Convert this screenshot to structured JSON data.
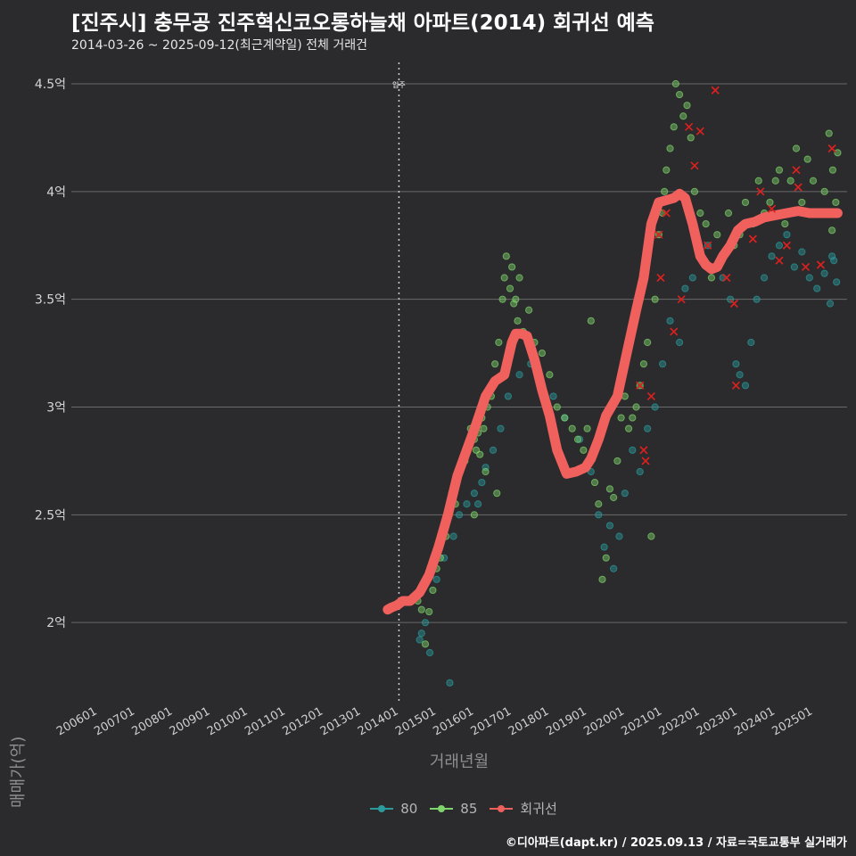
{
  "chart_data": {
    "type": "scatter",
    "title": "[진주시] 충무공 진주혁신코오롱하늘채 아파트(2014) 회귀선 예측",
    "subtitle": "2014-03-26 ~ 2025-09-12(최근계약일) 전체 거래건",
    "xlabel": "거래년월",
    "ylabel": "매매가(억)",
    "x_ticks": [
      "200601",
      "200701",
      "200801",
      "200901",
      "201001",
      "201101",
      "201201",
      "201301",
      "201401",
      "201501",
      "201601",
      "201701",
      "201801",
      "201901",
      "202001",
      "202101",
      "202201",
      "202301",
      "202401",
      "202501"
    ],
    "y_ticks": [
      "2억",
      "2.5억",
      "3억",
      "3.5억",
      "4억",
      "4.5억"
    ],
    "y_tick_values": [
      2.0,
      2.5,
      3.0,
      3.5,
      4.0,
      4.5
    ],
    "ylim": [
      1.62,
      4.62
    ],
    "xlim": [
      2005.3,
      2025.9
    ],
    "vline": {
      "x": 2014.0,
      "label": "입주"
    },
    "grid": "horizontal",
    "legend_position": "bottom",
    "series": [
      {
        "name": "80",
        "color": "#2a9a9c",
        "points": [
          [
            2014.55,
            1.92
          ],
          [
            2014.6,
            1.95
          ],
          [
            2014.7,
            2.0
          ],
          [
            2014.82,
            1.86
          ],
          [
            2015.0,
            2.2
          ],
          [
            2015.2,
            2.3
          ],
          [
            2015.35,
            1.72
          ],
          [
            2015.45,
            2.4
          ],
          [
            2015.6,
            2.5
          ],
          [
            2015.8,
            2.55
          ],
          [
            2016.0,
            2.6
          ],
          [
            2016.1,
            2.55
          ],
          [
            2016.2,
            2.65
          ],
          [
            2016.3,
            2.72
          ],
          [
            2016.5,
            2.8
          ],
          [
            2016.7,
            2.9
          ],
          [
            2016.9,
            3.05
          ],
          [
            2017.2,
            3.15
          ],
          [
            2017.5,
            3.2
          ],
          [
            2017.8,
            3.1
          ],
          [
            2018.1,
            3.05
          ],
          [
            2018.4,
            2.95
          ],
          [
            2018.8,
            2.85
          ],
          [
            2019.1,
            2.7
          ],
          [
            2019.3,
            2.5
          ],
          [
            2019.45,
            2.35
          ],
          [
            2019.6,
            2.45
          ],
          [
            2019.7,
            2.25
          ],
          [
            2019.85,
            2.4
          ],
          [
            2020.0,
            2.6
          ],
          [
            2020.2,
            2.8
          ],
          [
            2020.4,
            2.7
          ],
          [
            2020.6,
            2.9
          ],
          [
            2020.8,
            3.0
          ],
          [
            2021.0,
            3.2
          ],
          [
            2021.2,
            3.4
          ],
          [
            2021.45,
            3.3
          ],
          [
            2021.6,
            3.55
          ],
          [
            2021.8,
            3.6
          ],
          [
            2022.0,
            3.7
          ],
          [
            2022.2,
            3.75
          ],
          [
            2022.4,
            3.65
          ],
          [
            2022.6,
            3.6
          ],
          [
            2022.8,
            3.5
          ],
          [
            2022.95,
            3.2
          ],
          [
            2023.05,
            3.15
          ],
          [
            2023.2,
            3.1
          ],
          [
            2023.35,
            3.3
          ],
          [
            2023.5,
            3.5
          ],
          [
            2023.7,
            3.6
          ],
          [
            2023.9,
            3.7
          ],
          [
            2024.1,
            3.75
          ],
          [
            2024.3,
            3.8
          ],
          [
            2024.5,
            3.65
          ],
          [
            2024.7,
            3.72
          ],
          [
            2024.9,
            3.6
          ],
          [
            2025.1,
            3.55
          ],
          [
            2025.3,
            3.62
          ],
          [
            2025.5,
            3.7
          ],
          [
            2025.62,
            3.58
          ],
          [
            2025.55,
            3.68
          ],
          [
            2025.45,
            3.48
          ]
        ]
      },
      {
        "name": "85",
        "color": "#7fd46b",
        "points": [
          [
            2014.5,
            2.1
          ],
          [
            2014.6,
            2.06
          ],
          [
            2014.7,
            1.9
          ],
          [
            2014.8,
            2.05
          ],
          [
            2014.9,
            2.15
          ],
          [
            2015.0,
            2.25
          ],
          [
            2015.1,
            2.3
          ],
          [
            2015.25,
            2.4
          ],
          [
            2015.4,
            2.6
          ],
          [
            2015.5,
            2.55
          ],
          [
            2015.6,
            2.7
          ],
          [
            2015.75,
            2.75
          ],
          [
            2015.9,
            2.9
          ],
          [
            2016.0,
            2.85
          ],
          [
            2016.05,
            2.8
          ],
          [
            2016.1,
            2.88
          ],
          [
            2016.15,
            2.78
          ],
          [
            2016.2,
            2.95
          ],
          [
            2016.25,
            2.9
          ],
          [
            2016.3,
            2.7
          ],
          [
            2016.35,
            3.0
          ],
          [
            2016.45,
            3.05
          ],
          [
            2016.55,
            3.2
          ],
          [
            2016.65,
            3.3
          ],
          [
            2016.75,
            3.5
          ],
          [
            2016.8,
            3.6
          ],
          [
            2016.85,
            3.7
          ],
          [
            2016.95,
            3.55
          ],
          [
            2017.0,
            3.65
          ],
          [
            2017.05,
            3.48
          ],
          [
            2017.1,
            3.5
          ],
          [
            2017.15,
            3.4
          ],
          [
            2017.2,
            3.6
          ],
          [
            2017.3,
            3.35
          ],
          [
            2017.45,
            3.45
          ],
          [
            2017.6,
            3.3
          ],
          [
            2017.8,
            3.25
          ],
          [
            2018.0,
            3.15
          ],
          [
            2018.2,
            3.0
          ],
          [
            2018.4,
            2.95
          ],
          [
            2018.6,
            2.9
          ],
          [
            2018.75,
            2.85
          ],
          [
            2018.9,
            2.8
          ],
          [
            2019.0,
            2.9
          ],
          [
            2019.1,
            3.4
          ],
          [
            2019.2,
            2.65
          ],
          [
            2019.3,
            2.55
          ],
          [
            2019.4,
            2.2
          ],
          [
            2019.5,
            2.3
          ],
          [
            2019.6,
            2.62
          ],
          [
            2019.7,
            2.58
          ],
          [
            2019.8,
            2.75
          ],
          [
            2019.9,
            2.95
          ],
          [
            2020.0,
            3.05
          ],
          [
            2020.1,
            2.9
          ],
          [
            2020.2,
            2.95
          ],
          [
            2020.3,
            3.0
          ],
          [
            2020.4,
            3.1
          ],
          [
            2020.5,
            3.2
          ],
          [
            2020.6,
            3.3
          ],
          [
            2020.7,
            2.4
          ],
          [
            2020.8,
            3.5
          ],
          [
            2020.9,
            3.8
          ],
          [
            2021.0,
            3.9
          ],
          [
            2021.05,
            4.0
          ],
          [
            2021.1,
            4.1
          ],
          [
            2021.2,
            4.2
          ],
          [
            2021.3,
            4.3
          ],
          [
            2021.35,
            4.5
          ],
          [
            2021.45,
            4.45
          ],
          [
            2021.55,
            4.35
          ],
          [
            2021.65,
            4.4
          ],
          [
            2021.75,
            4.25
          ],
          [
            2021.85,
            4.0
          ],
          [
            2022.0,
            3.9
          ],
          [
            2022.15,
            3.85
          ],
          [
            2022.3,
            3.6
          ],
          [
            2022.45,
            3.8
          ],
          [
            2022.6,
            3.7
          ],
          [
            2022.75,
            3.9
          ],
          [
            2022.9,
            3.75
          ],
          [
            2023.05,
            3.8
          ],
          [
            2023.2,
            3.95
          ],
          [
            2023.4,
            3.85
          ],
          [
            2023.55,
            4.05
          ],
          [
            2023.7,
            3.9
          ],
          [
            2023.85,
            3.95
          ],
          [
            2024.0,
            4.05
          ],
          [
            2024.1,
            4.1
          ],
          [
            2024.25,
            3.85
          ],
          [
            2024.4,
            4.05
          ],
          [
            2024.55,
            4.2
          ],
          [
            2024.7,
            3.95
          ],
          [
            2024.85,
            4.15
          ],
          [
            2025.0,
            4.05
          ],
          [
            2025.15,
            3.9
          ],
          [
            2025.3,
            4.0
          ],
          [
            2025.42,
            4.27
          ],
          [
            2025.52,
            4.1
          ],
          [
            2025.6,
            3.95
          ],
          [
            2025.65,
            4.18
          ],
          [
            2025.5,
            3.82
          ],
          [
            2016.6,
            2.6
          ],
          [
            2016.0,
            2.5
          ]
        ]
      }
    ],
    "outliers": [
      [
        2020.4,
        3.1
      ],
      [
        2020.5,
        2.8
      ],
      [
        2020.55,
        2.75
      ],
      [
        2020.7,
        3.05
      ],
      [
        2020.9,
        3.8
      ],
      [
        2020.95,
        3.6
      ],
      [
        2021.1,
        3.9
      ],
      [
        2021.3,
        3.35
      ],
      [
        2021.5,
        3.5
      ],
      [
        2021.7,
        4.3
      ],
      [
        2021.85,
        4.12
      ],
      [
        2022.0,
        4.28
      ],
      [
        2022.2,
        3.75
      ],
      [
        2022.4,
        4.47
      ],
      [
        2022.7,
        3.6
      ],
      [
        2022.9,
        3.48
      ],
      [
        2022.95,
        3.1
      ],
      [
        2023.4,
        3.78
      ],
      [
        2023.6,
        4.0
      ],
      [
        2023.9,
        3.92
      ],
      [
        2024.1,
        3.68
      ],
      [
        2024.3,
        3.75
      ],
      [
        2024.55,
        4.1
      ],
      [
        2024.6,
        4.02
      ],
      [
        2024.8,
        3.65
      ],
      [
        2025.2,
        3.66
      ],
      [
        2025.5,
        4.2
      ]
    ],
    "regression": {
      "name": "회귀선",
      "color": "#f0605d",
      "x": [
        2013.7,
        2013.8,
        2013.95,
        2014.1,
        2014.3,
        2014.55,
        2014.8,
        2015.05,
        2015.3,
        2015.55,
        2015.8,
        2016.05,
        2016.3,
        2016.55,
        2016.8,
        2017.0,
        2017.1,
        2017.25,
        2017.4,
        2017.6,
        2017.8,
        2018.0,
        2018.2,
        2018.45,
        2018.7,
        2018.95,
        2019.1,
        2019.3,
        2019.5,
        2019.8,
        2020.05,
        2020.3,
        2020.5,
        2020.7,
        2020.9,
        2021.1,
        2021.3,
        2021.45,
        2021.6,
        2021.8,
        2022.0,
        2022.15,
        2022.3,
        2022.45,
        2022.6,
        2022.8,
        2023.0,
        2023.2,
        2023.45,
        2023.7,
        2024.0,
        2024.3,
        2024.6,
        2024.9,
        2025.2,
        2025.45,
        2025.65
      ],
      "y": [
        2.06,
        2.07,
        2.08,
        2.1,
        2.1,
        2.14,
        2.22,
        2.35,
        2.5,
        2.68,
        2.8,
        2.92,
        3.05,
        3.12,
        3.15,
        3.3,
        3.34,
        3.34,
        3.33,
        3.22,
        3.08,
        2.96,
        2.8,
        2.69,
        2.7,
        2.72,
        2.76,
        2.85,
        2.96,
        3.05,
        3.25,
        3.45,
        3.6,
        3.85,
        3.95,
        3.96,
        3.97,
        3.99,
        3.97,
        3.85,
        3.7,
        3.66,
        3.64,
        3.65,
        3.7,
        3.75,
        3.82,
        3.85,
        3.86,
        3.88,
        3.89,
        3.9,
        3.91,
        3.9,
        3.9,
        3.9,
        3.9
      ]
    }
  },
  "legend": {
    "items": [
      {
        "label": "80",
        "color": "#2a9a9c"
      },
      {
        "label": "85",
        "color": "#7fd46b"
      },
      {
        "label": "회귀선",
        "color": "#f0605d"
      }
    ]
  },
  "caption": "©디아파트(dapt.kr) / 2025.09.13 / 자료=국토교통부 실거래가"
}
